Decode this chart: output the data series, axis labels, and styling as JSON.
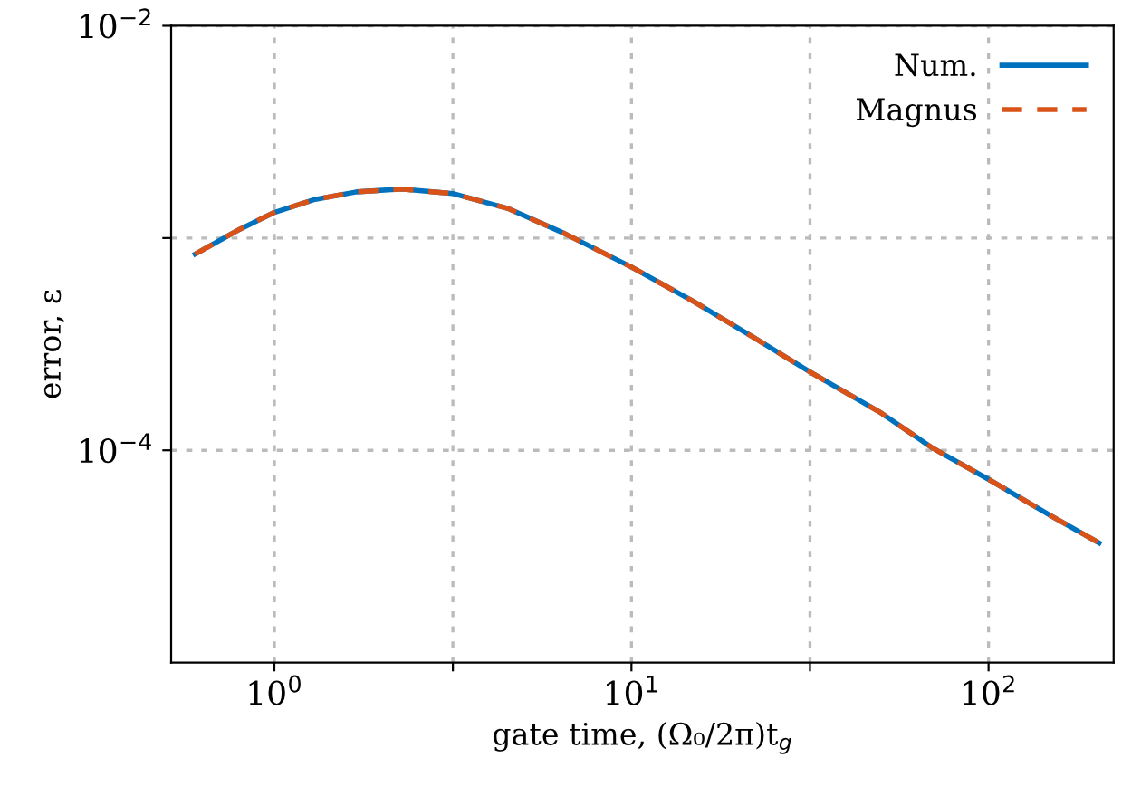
{
  "chart_data": {
    "type": "line",
    "xlabel": "gate time, (Ω₀/2π)t$_{g}$",
    "ylabel": "error, ε",
    "log": "xy",
    "grid": true,
    "legend": "top right",
    "xlim": [
      0.514,
      224
    ],
    "ylim": [
      1e-05,
      0.01
    ],
    "xticks": [
      {
        "value": 1,
        "label": "10$^{0}$"
      },
      {
        "value": 3.162,
        "label": null
      },
      {
        "value": 10,
        "label": "10$^{1}$"
      },
      {
        "value": 31.62,
        "label": null
      },
      {
        "value": 100,
        "label": "10$^{2}$"
      }
    ],
    "yticks": [
      {
        "value": 0.01,
        "label": "10$^{−2}$"
      },
      {
        "value": 0.001,
        "label": null
      },
      {
        "value": 0.0001,
        "label": "10$^{−4}$"
      }
    ],
    "x": [
      0.6,
      0.8,
      1,
      1.3,
      1.7,
      2.27,
      3.16,
      4.5,
      6.5,
      10,
      15,
      22,
      31.6,
      50,
      70,
      100,
      150,
      204
    ],
    "series": [
      {
        "name": "Num.",
        "color": "#0072bd",
        "line_style": "solid",
        "values": [
          0.00084,
          0.0011,
          0.00132,
          0.00152,
          0.00165,
          0.0017,
          0.00162,
          0.00138,
          0.00105,
          0.00073,
          0.0005,
          0.00034,
          0.000234,
          0.00015,
          0.000102,
          7.3e-05,
          4.9e-05,
          3.66e-05
        ]
      },
      {
        "name": "Magnus",
        "color": "#d95319",
        "line_style": "dashed",
        "values": [
          0.00084,
          0.0011,
          0.00132,
          0.00152,
          0.00165,
          0.0017,
          0.00162,
          0.00138,
          0.00105,
          0.00073,
          0.0005,
          0.00034,
          0.000234,
          0.00015,
          0.000102,
          7.3e-05,
          4.9e-05,
          3.66e-05
        ]
      }
    ]
  }
}
